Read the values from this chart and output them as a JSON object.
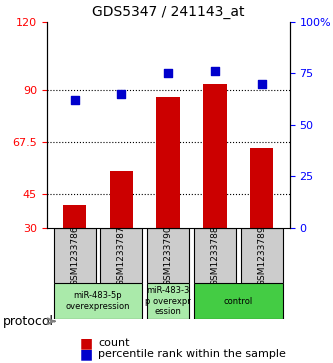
{
  "title": "GDS5347 / 241143_at",
  "samples": [
    "GSM1233786",
    "GSM1233787",
    "GSM1233790",
    "GSM1233788",
    "GSM1233789"
  ],
  "counts": [
    40,
    55,
    87,
    93,
    65
  ],
  "percentiles": [
    62,
    65,
    75,
    76,
    70
  ],
  "ylim_left": [
    30,
    120
  ],
  "ylim_right": [
    0,
    100
  ],
  "yticks_left": [
    30,
    45,
    67.5,
    90,
    120
  ],
  "ytick_labels_left": [
    "30",
    "45",
    "67.5",
    "90",
    "120"
  ],
  "yticks_right": [
    0,
    25,
    50,
    75,
    100
  ],
  "ytick_labels_right": [
    "0",
    "25",
    "50",
    "75",
    "100%"
  ],
  "hlines": [
    45,
    67.5,
    90
  ],
  "bar_color": "#cc0000",
  "dot_color": "#0000cc",
  "protocol_groups": [
    {
      "label": "miR-483-5p\noverexpression",
      "color": "#ccffcc",
      "samples": [
        "GSM1233786",
        "GSM1233787"
      ]
    },
    {
      "label": "miR-483-3\np overexpr\nession",
      "color": "#ccffcc",
      "samples": [
        "GSM1233790"
      ]
    },
    {
      "label": "control",
      "color": "#44cc44",
      "samples": [
        "GSM1233788",
        "GSM1233789"
      ]
    }
  ],
  "bg_color_plot": "#ffffff",
  "bg_color_sample": "#cccccc",
  "legend_count_color": "#cc0000",
  "legend_pct_color": "#0000cc"
}
